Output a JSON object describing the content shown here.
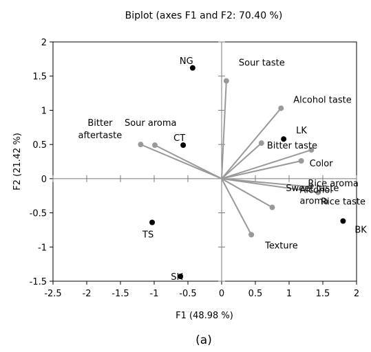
{
  "chart_data": {
    "type": "scatter",
    "title": "Biplot (axes F1 and F2: 70.40 %)",
    "xlabel": "F1 (48.98 %)",
    "ylabel": "F2 (21.42 %)",
    "xlim": [
      -2.5,
      2
    ],
    "ylim": [
      -1.5,
      2
    ],
    "xticks": [
      "-2.5",
      "-2",
      "-1.5",
      "-1",
      "-0.5",
      "0",
      "0.5",
      "1",
      "1.5",
      "2"
    ],
    "yticks": [
      "-1.5",
      "-1",
      "-0.5",
      "0",
      "0.5",
      "1",
      "1.5",
      "2"
    ],
    "grid": false,
    "caption": "(a)",
    "vector_color": "#999999",
    "sample_color": "#000000",
    "variables": [
      {
        "name": "Sour taste",
        "x": 0.07,
        "y": 1.43
      },
      {
        "name": "Alcohol taste",
        "x": 0.88,
        "y": 1.03
      },
      {
        "name": "Bitter taste",
        "x": 0.59,
        "y": 0.52
      },
      {
        "name": "Color",
        "x": 1.18,
        "y": 0.26
      },
      {
        "name": "Rice aroma",
        "x": 1.32,
        "y": -0.12
      },
      {
        "name": "Rice taste",
        "x": 1.43,
        "y": -0.2
      },
      {
        "name": "Alcohol aroma",
        "x": 0.75,
        "y": -0.42
      },
      {
        "name": "Sweet taste",
        "x": 1.33,
        "y": 0.42
      },
      {
        "name": "Texture",
        "x": 0.44,
        "y": -0.82
      },
      {
        "name": "Sour aroma",
        "x": -0.99,
        "y": 0.49
      },
      {
        "name": "Bitter aftertaste",
        "x": -1.2,
        "y": 0.5
      }
    ],
    "samples": [
      {
        "name": "NG",
        "x": -0.43,
        "y": 1.62
      },
      {
        "name": "CT",
        "x": -0.57,
        "y": 0.49
      },
      {
        "name": "LK",
        "x": 0.92,
        "y": 0.58
      },
      {
        "name": "BK",
        "x": 1.8,
        "y": -0.62
      },
      {
        "name": "TS",
        "x": -1.03,
        "y": -0.64
      },
      {
        "name": "SH",
        "x": -0.61,
        "y": -1.43
      }
    ]
  }
}
